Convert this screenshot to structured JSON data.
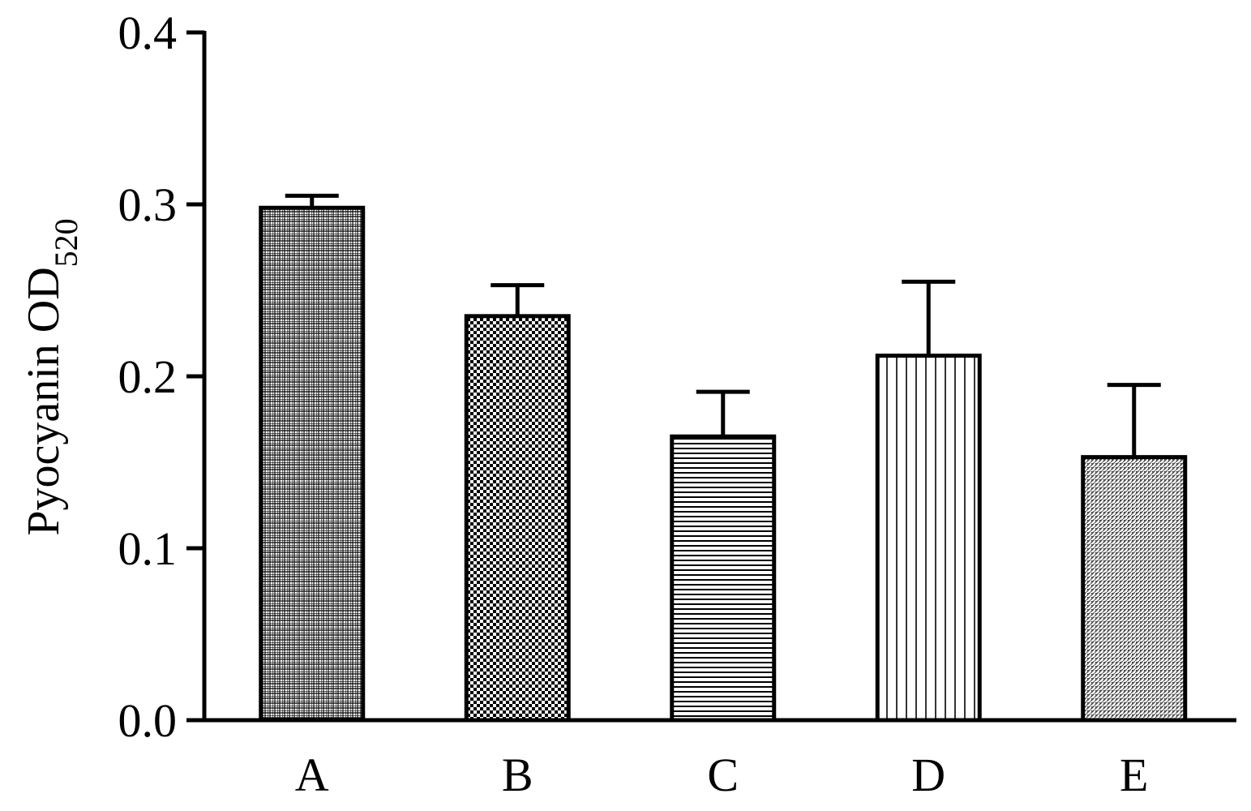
{
  "chart_data": {
    "type": "bar",
    "ylabel": "Pyocyanin OD",
    "ylabel_subscript": "520",
    "xlabel": "",
    "categories": [
      "A",
      "B",
      "C",
      "D",
      "E"
    ],
    "values": [
      0.298,
      0.235,
      0.165,
      0.212,
      0.153
    ],
    "error_plus": [
      0.007,
      0.018,
      0.026,
      0.043,
      0.042
    ],
    "ylim": [
      0.0,
      0.4
    ],
    "yticks": [
      0.0,
      0.1,
      0.2,
      0.3,
      0.4
    ],
    "ytick_labels": [
      "0.0",
      "0.1",
      "0.2",
      "0.3",
      "0.4"
    ],
    "patterns": [
      "fine-grid",
      "checker",
      "horizontal-lines",
      "vertical-lines",
      "stipple"
    ],
    "grid": false,
    "legend": "none"
  }
}
